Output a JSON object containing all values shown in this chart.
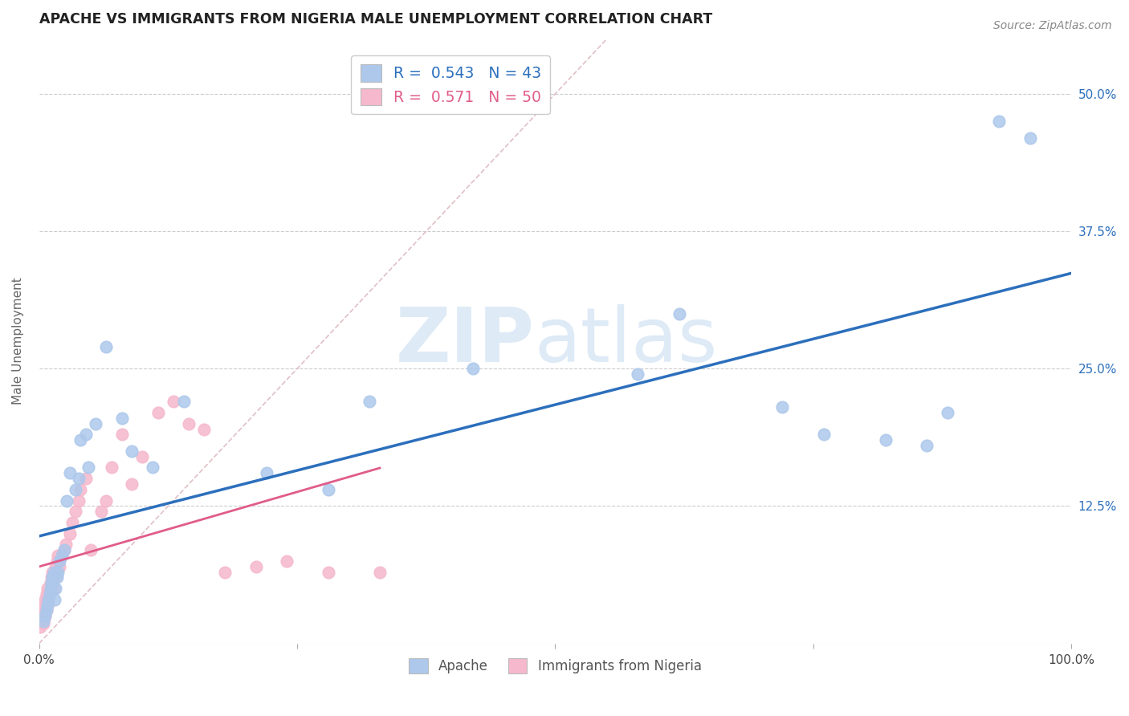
{
  "title": "APACHE VS IMMIGRANTS FROM NIGERIA MALE UNEMPLOYMENT CORRELATION CHART",
  "source": "Source: ZipAtlas.com",
  "ylabel": "Male Unemployment",
  "watermark_zip": "ZIP",
  "watermark_atlas": "atlas",
  "legend_r1": "R = 0.543",
  "legend_n1": "N = 43",
  "legend_r2": "R = 0.571",
  "legend_n2": "N = 50",
  "apache_color": "#adc8eb",
  "nigeria_color": "#f5b8cc",
  "apache_line_color": "#2c6fbc",
  "nigeria_line_color": "#e05c8a",
  "diagonal_color": "#d8b0b8",
  "grid_color": "#cccccc",
  "apache_x": [
    0.004,
    0.006,
    0.007,
    0.008,
    0.009,
    0.01,
    0.011,
    0.012,
    0.013,
    0.014,
    0.015,
    0.016,
    0.017,
    0.018,
    0.02,
    0.022,
    0.024,
    0.027,
    0.03,
    0.035,
    0.038,
    0.04,
    0.045,
    0.048,
    0.055,
    0.065,
    0.08,
    0.09,
    0.11,
    0.14,
    0.22,
    0.28,
    0.32,
    0.42,
    0.58,
    0.62,
    0.72,
    0.76,
    0.82,
    0.86,
    0.88,
    0.93,
    0.96
  ],
  "apache_y": [
    0.02,
    0.025,
    0.03,
    0.035,
    0.04,
    0.045,
    0.05,
    0.055,
    0.06,
    0.065,
    0.04,
    0.05,
    0.06,
    0.065,
    0.075,
    0.08,
    0.085,
    0.13,
    0.155,
    0.14,
    0.15,
    0.185,
    0.19,
    0.16,
    0.2,
    0.27,
    0.205,
    0.175,
    0.16,
    0.22,
    0.155,
    0.14,
    0.22,
    0.25,
    0.245,
    0.3,
    0.215,
    0.19,
    0.185,
    0.18,
    0.21,
    0.475,
    0.46
  ],
  "nigeria_x": [
    0.001,
    0.002,
    0.003,
    0.003,
    0.004,
    0.004,
    0.005,
    0.005,
    0.006,
    0.006,
    0.007,
    0.007,
    0.008,
    0.008,
    0.009,
    0.01,
    0.011,
    0.012,
    0.013,
    0.014,
    0.015,
    0.016,
    0.017,
    0.018,
    0.02,
    0.022,
    0.024,
    0.026,
    0.03,
    0.032,
    0.035,
    0.038,
    0.04,
    0.045,
    0.05,
    0.06,
    0.065,
    0.07,
    0.08,
    0.09,
    0.1,
    0.115,
    0.13,
    0.145,
    0.16,
    0.18,
    0.21,
    0.24,
    0.28,
    0.33
  ],
  "nigeria_y": [
    0.015,
    0.02,
    0.025,
    0.03,
    0.018,
    0.028,
    0.022,
    0.035,
    0.025,
    0.04,
    0.03,
    0.045,
    0.035,
    0.05,
    0.04,
    0.048,
    0.055,
    0.06,
    0.065,
    0.05,
    0.06,
    0.07,
    0.075,
    0.08,
    0.07,
    0.08,
    0.085,
    0.09,
    0.1,
    0.11,
    0.12,
    0.13,
    0.14,
    0.15,
    0.085,
    0.12,
    0.13,
    0.16,
    0.19,
    0.145,
    0.17,
    0.21,
    0.22,
    0.2,
    0.195,
    0.065,
    0.07,
    0.075,
    0.065,
    0.065
  ],
  "ylim": [
    0.0,
    0.55
  ],
  "xlim": [
    0.0,
    1.0
  ],
  "yticks": [
    0.0,
    0.125,
    0.25,
    0.375,
    0.5
  ],
  "ytick_labels": [
    "",
    "12.5%",
    "25.0%",
    "37.5%",
    "50.0%"
  ],
  "xticks": [
    0.0,
    0.25,
    0.5,
    0.75,
    1.0
  ],
  "xtick_labels": [
    "0.0%",
    "",
    "",
    "",
    "100.0%"
  ]
}
